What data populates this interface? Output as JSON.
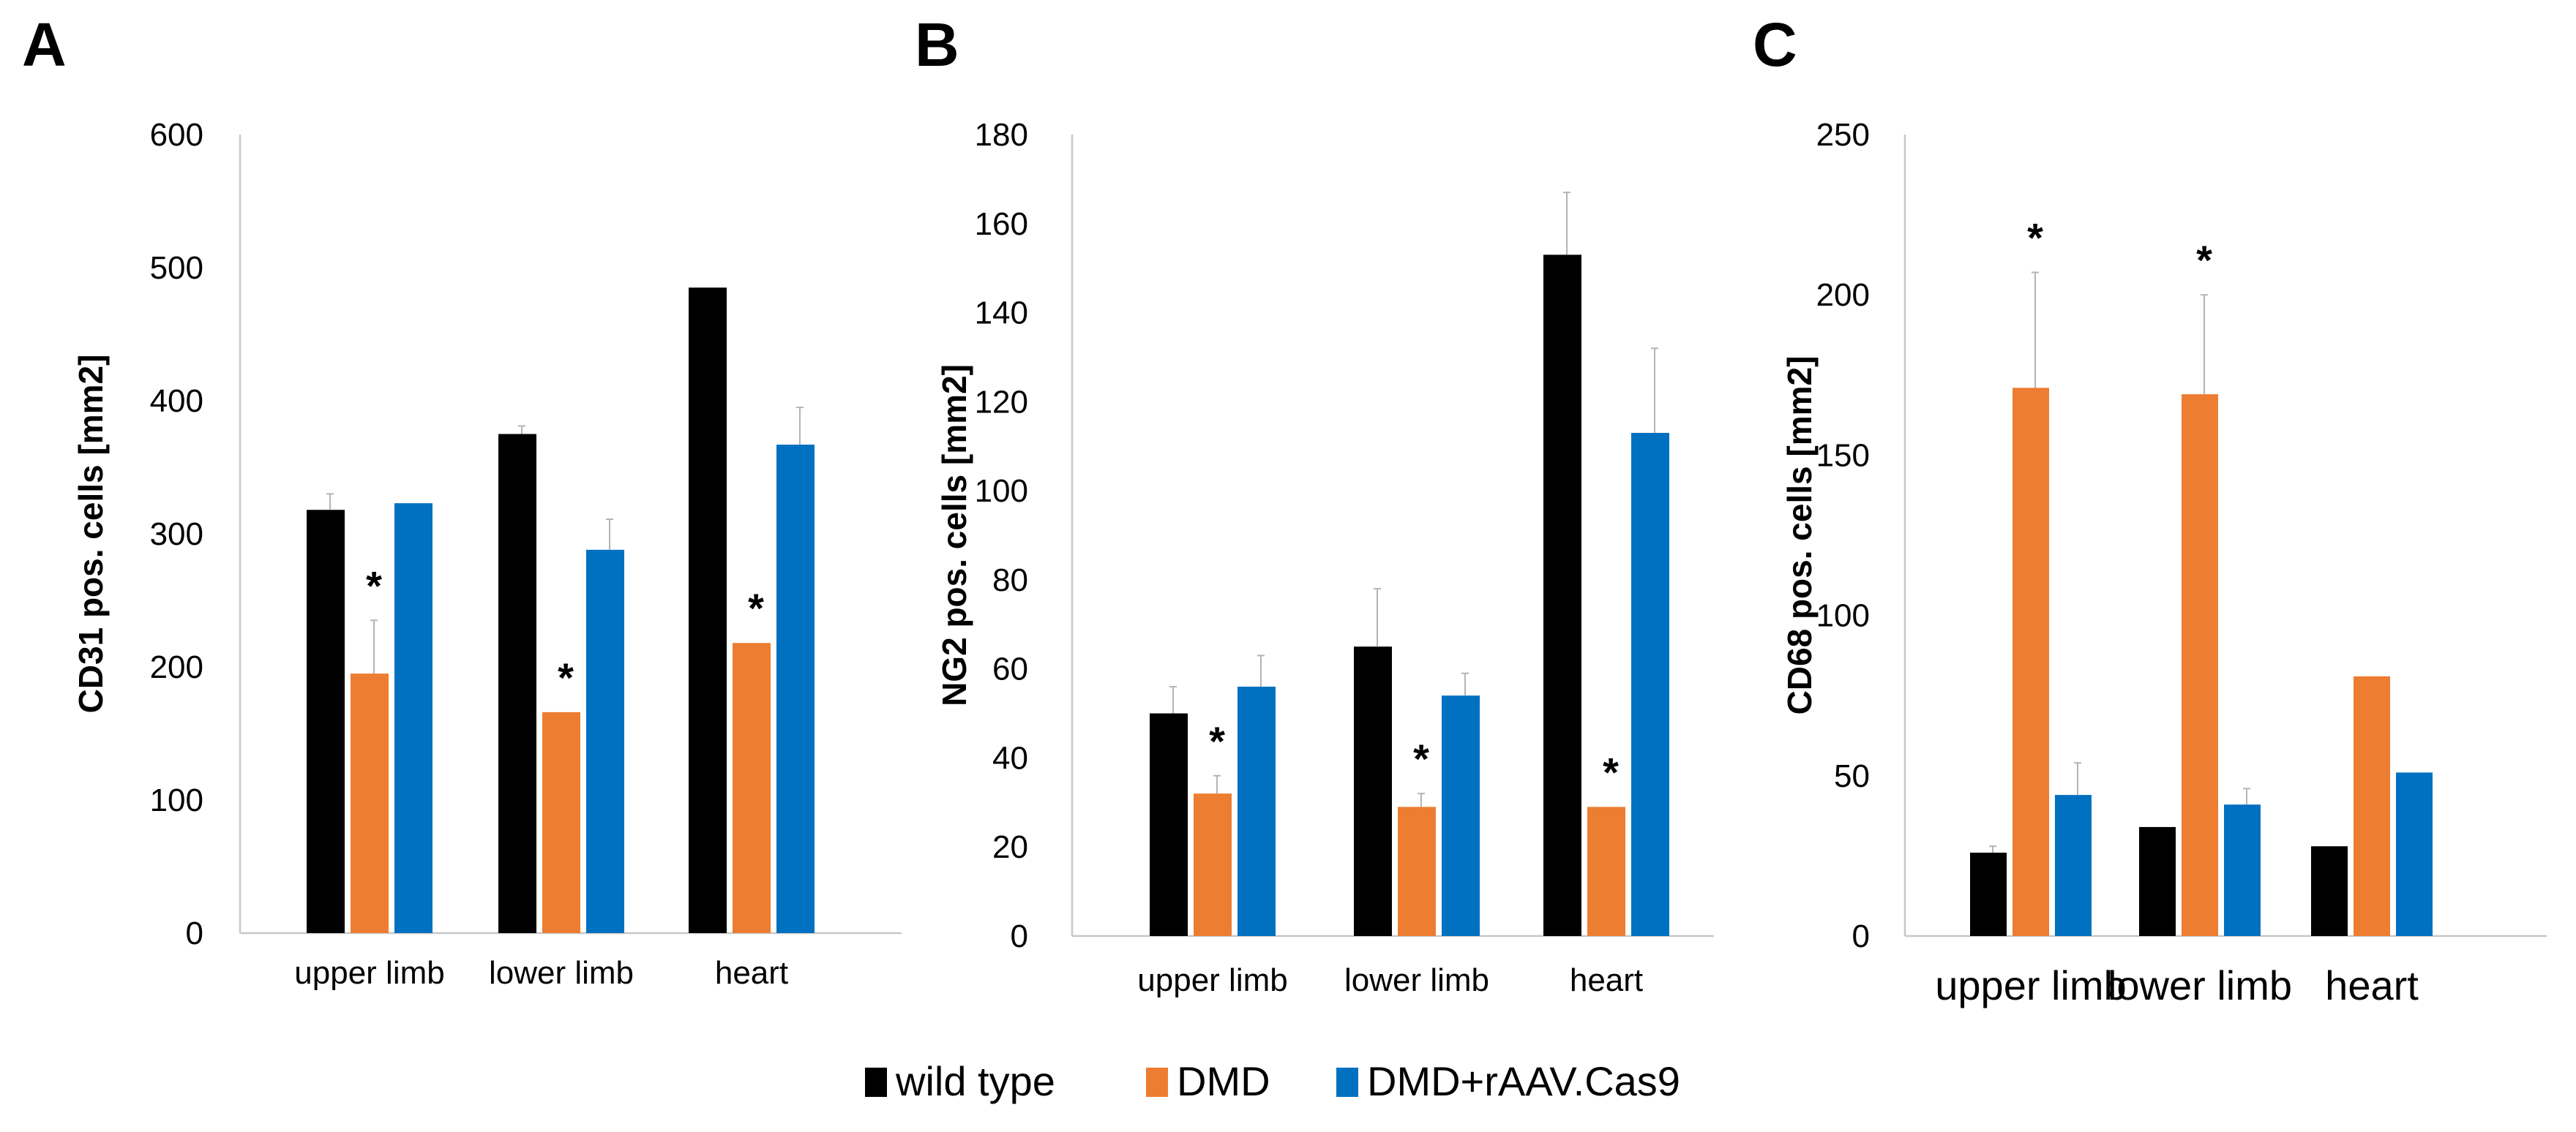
{
  "figure": {
    "legend_position": "bottom-center"
  },
  "legend": [
    {
      "name": "wild type",
      "color": "#000000"
    },
    {
      "name": "DMD",
      "color": "#ED7D31"
    },
    {
      "name": "DMD+rAAV.Cas9",
      "color": "#0070C0"
    }
  ],
  "chart_data": [
    {
      "id": "A",
      "type": "bar",
      "panel_letter": "A",
      "ylabel": "CD31 pos. cells [mm2]",
      "ylim": [
        0,
        600
      ],
      "yticks": [
        "0",
        "100",
        "200",
        "300",
        "400",
        "500",
        "600"
      ],
      "grid": false,
      "categories": [
        "upper limb",
        "lower limb",
        "heart"
      ],
      "series": [
        {
          "name": "wild type",
          "values": [
            318,
            375,
            485
          ],
          "errors": [
            12,
            6,
            0
          ]
        },
        {
          "name": "DMD",
          "values": [
            195,
            166,
            218
          ],
          "errors": [
            40,
            0,
            0
          ]
        },
        {
          "name": "DMD+rAAV.Cas9",
          "values": [
            323,
            288,
            367
          ],
          "errors": [
            0,
            23,
            28
          ]
        }
      ],
      "significance": [
        {
          "category": "upper limb",
          "series": "DMD",
          "label": "*"
        },
        {
          "category": "lower limb",
          "series": "DMD",
          "label": "*"
        },
        {
          "category": "heart",
          "series": "DMD",
          "label": "*"
        }
      ]
    },
    {
      "id": "B",
      "type": "bar",
      "panel_letter": "B",
      "ylabel": "NG2 pos. cells [mm2]",
      "ylim": [
        0,
        180
      ],
      "yticks": [
        "0",
        "20",
        "40",
        "60",
        "80",
        "100",
        "120",
        "140",
        "160",
        "180"
      ],
      "grid": false,
      "categories": [
        "upper limb",
        "lower limb",
        "heart"
      ],
      "series": [
        {
          "name": "wild type",
          "values": [
            50,
            65,
            153
          ],
          "errors": [
            6,
            13,
            14
          ]
        },
        {
          "name": "DMD",
          "values": [
            32,
            29,
            29
          ],
          "errors": [
            4,
            3,
            0
          ]
        },
        {
          "name": "DMD+rAAV.Cas9",
          "values": [
            56,
            54,
            113
          ],
          "errors": [
            7,
            5,
            19
          ]
        }
      ],
      "significance": [
        {
          "category": "upper limb",
          "series": "DMD",
          "label": "*"
        },
        {
          "category": "lower limb",
          "series": "DMD",
          "label": "*"
        },
        {
          "category": "heart",
          "series": "DMD",
          "label": "*"
        }
      ]
    },
    {
      "id": "C",
      "type": "bar",
      "panel_letter": "C",
      "ylabel": "CD68 pos. cells [mm2]",
      "ylim": [
        0,
        250
      ],
      "yticks": [
        "0",
        "50",
        "100",
        "150",
        "200",
        "250"
      ],
      "grid": false,
      "categories": [
        "upper limb",
        "lower limb",
        "heart"
      ],
      "series": [
        {
          "name": "wild type",
          "values": [
            26,
            34,
            28
          ],
          "errors": [
            2,
            0,
            0
          ]
        },
        {
          "name": "DMD",
          "values": [
            171,
            169,
            81
          ],
          "errors": [
            36,
            31,
            0
          ]
        },
        {
          "name": "DMD+rAAV.Cas9",
          "values": [
            44,
            41,
            51
          ],
          "errors": [
            10,
            5,
            0
          ]
        }
      ],
      "significance": [
        {
          "category": "upper limb",
          "series": "DMD",
          "label": "*"
        },
        {
          "category": "lower limb",
          "series": "DMD",
          "label": "*"
        }
      ]
    }
  ]
}
